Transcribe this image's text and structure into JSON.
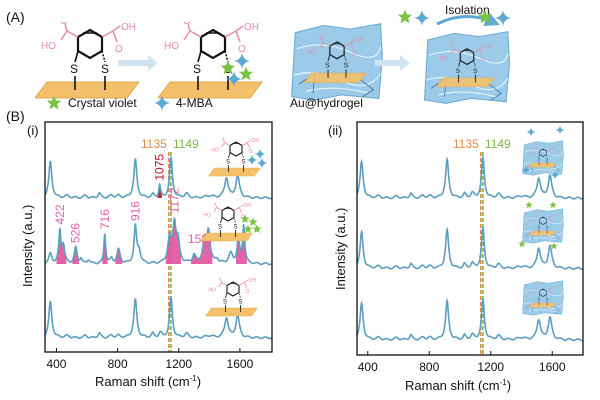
{
  "panel_a": {
    "label": "(A)",
    "legend": {
      "crystal_violet": "Crystal violet",
      "mba": "4-MBA"
    },
    "hydrogel_label": "Au@hydrogel",
    "isolation_label": "Isolation"
  },
  "molecule": {
    "acid": "OH",
    "hydroxyl": "HO",
    "oxygen": "O",
    "sulfur": "S"
  },
  "panel_b": {
    "label": "(B)"
  },
  "colors": {
    "spectrum": "#5b9fc0",
    "cv_fill": "#e0529c",
    "cv_label": "#e35fa5",
    "mba_peak": "#c0142a",
    "line_1135": "#e8874a",
    "line_1149": "#7ab648",
    "gold": "#f4c06a",
    "hydrogel": "#9ccbea",
    "star_green": "#7cc242",
    "star_blue": "#5ea8d3",
    "arrow": "#bcdbe9"
  },
  "chart_data": [
    {
      "type": "line",
      "panel": "(i)",
      "xlabel": "Raman shift (cm-1)",
      "xlabel_main": "Raman shift (cm",
      "xlabel_sup": "-1",
      "xlabel_close": ")",
      "ylabel": "Intensity (a.u.)",
      "xlim": [
        325,
        1810
      ],
      "ylim": [
        0,
        5.75
      ],
      "xticks": [
        400,
        800,
        1200,
        1600
      ],
      "xtick_labels": [
        "400",
        "800",
        "1200",
        "1600"
      ],
      "grid": false,
      "reference_lines": [
        {
          "x": 1135,
          "label": "1135",
          "color": "#e8874a"
        },
        {
          "x": 1149,
          "label": "1149",
          "color": "#7ab648"
        }
      ],
      "series": [
        {
          "inset": "substrate with 4-MBA",
          "offset": 3.85,
          "peaks": [
            [
              360,
              0.9,
              12
            ],
            [
              470,
              0.05,
              20
            ],
            [
              590,
              0.06,
              12
            ],
            [
              680,
              0.12,
              10
            ],
            [
              760,
              0.06,
              15
            ],
            [
              805,
              0.05,
              15
            ],
            [
              916,
              0.95,
              12
            ],
            [
              1030,
              0.08,
              10
            ],
            [
              1075,
              0.3,
              7
            ],
            [
              1149,
              1.0,
              11
            ],
            [
              1250,
              0.1,
              15
            ],
            [
              1400,
              0.05,
              30
            ],
            [
              1512,
              0.5,
              14
            ],
            [
              1585,
              0.55,
              14
            ]
          ],
          "filled": [
            [
              1060,
              1090,
              "#c0142a"
            ]
          ]
        },
        {
          "inset": "substrate with crystal violet",
          "offset": 2.2,
          "peaks": [
            [
              360,
              0.25,
              12
            ],
            [
              422,
              0.8,
              8
            ],
            [
              445,
              0.45,
              10
            ],
            [
              526,
              0.4,
              10
            ],
            [
              560,
              0.12,
              8
            ],
            [
              610,
              0.1,
              10
            ],
            [
              716,
              0.75,
              7
            ],
            [
              760,
              0.12,
              10
            ],
            [
              806,
              0.35,
              12
            ],
            [
              916,
              0.9,
              10
            ],
            [
              940,
              0.3,
              12
            ],
            [
              1140,
              0.6,
              14
            ],
            [
              1172,
              0.95,
              12
            ],
            [
              1195,
              0.5,
              12
            ],
            [
              1300,
              0.2,
              12
            ],
            [
              1370,
              0.55,
              15
            ],
            [
              1395,
              0.75,
              12
            ],
            [
              1450,
              0.1,
              12
            ],
            [
              1540,
              0.25,
              15
            ],
            [
              1590,
              0.6,
              10
            ],
            [
              1625,
              0.95,
              8
            ]
          ],
          "filled": [
            [
              400,
              465,
              "#e0529c"
            ],
            [
              505,
              548,
              "#e0529c"
            ],
            [
              700,
              735,
              "#e0529c"
            ],
            [
              785,
              830,
              "#e0529c"
            ],
            [
              1115,
              1215,
              "#e0529c"
            ],
            [
              1280,
              1420,
              "#e0529c"
            ],
            [
              1575,
              1645,
              "#e0529c"
            ]
          ]
        },
        {
          "inset": "bare substrate",
          "offset": 0.35,
          "peaks": [
            [
              360,
              0.9,
              12
            ],
            [
              470,
              0.05,
              20
            ],
            [
              590,
              0.06,
              12
            ],
            [
              680,
              0.12,
              10
            ],
            [
              760,
              0.06,
              15
            ],
            [
              805,
              0.05,
              15
            ],
            [
              916,
              0.95,
              12
            ],
            [
              1030,
              0.1,
              10
            ],
            [
              1080,
              0.12,
              12
            ],
            [
              1149,
              1.0,
              11
            ],
            [
              1250,
              0.1,
              15
            ],
            [
              1400,
              0.05,
              30
            ],
            [
              1512,
              0.5,
              14
            ],
            [
              1585,
              0.55,
              14
            ]
          ],
          "filled": []
        }
      ],
      "annotations": [
        {
          "text": "1075",
          "x": 1075,
          "series": 0,
          "color": "#c0142a"
        },
        {
          "text": "422",
          "x": 422,
          "series": 1,
          "color": "#e35fa5"
        },
        {
          "text": "526",
          "x": 526,
          "series": 1,
          "color": "#e35fa5"
        },
        {
          "text": "716",
          "x": 716,
          "series": 1,
          "color": "#e35fa5"
        },
        {
          "text": "916",
          "x": 916,
          "series": 1,
          "color": "#e35fa5"
        },
        {
          "text": "1172",
          "x": 1172,
          "series": 1,
          "color": "#e35fa5"
        },
        {
          "text": "1587",
          "x": 1587,
          "series": 1,
          "color": "#e35fa5"
        }
      ]
    },
    {
      "type": "line",
      "panel": "(ii)",
      "xlabel": "Raman shift (cm-1)",
      "xlabel_main": "Raman shift (cm",
      "xlabel_sup": "-1",
      "xlabel_close": ")",
      "ylabel": "Intensity (a.u.)",
      "xlim": [
        330,
        1800
      ],
      "ylim": [
        0,
        5.8
      ],
      "xticks": [
        400,
        800,
        1200,
        1600
      ],
      "xtick_labels": [
        "400",
        "800",
        "1200",
        "1600"
      ],
      "grid": false,
      "reference_lines": [
        {
          "x": 1135,
          "label": "1135",
          "color": "#e8874a"
        },
        {
          "x": 1149,
          "label": "1149",
          "color": "#7ab648"
        }
      ],
      "series": [
        {
          "inset": "Au@hydrogel with 4-MBA outside",
          "offset": 3.9,
          "peaks": [
            [
              360,
              0.9,
              12
            ],
            [
              470,
              0.05,
              20
            ],
            [
              590,
              0.05,
              15
            ],
            [
              680,
              0.12,
              10
            ],
            [
              760,
              0.06,
              15
            ],
            [
              805,
              0.05,
              15
            ],
            [
              916,
              0.95,
              12
            ],
            [
              1030,
              0.1,
              10
            ],
            [
              1080,
              0.12,
              12
            ],
            [
              1149,
              1.0,
              11
            ],
            [
              1250,
              0.1,
              15
            ],
            [
              1400,
              0.05,
              30
            ],
            [
              1512,
              0.5,
              14
            ],
            [
              1585,
              0.55,
              14
            ]
          ],
          "filled": []
        },
        {
          "inset": "Au@hydrogel with crystal violet outside",
          "offset": 2.15,
          "peaks": [
            [
              360,
              0.9,
              12
            ],
            [
              470,
              0.05,
              20
            ],
            [
              590,
              0.05,
              15
            ],
            [
              680,
              0.12,
              10
            ],
            [
              760,
              0.06,
              15
            ],
            [
              805,
              0.05,
              15
            ],
            [
              916,
              0.95,
              12
            ],
            [
              1030,
              0.1,
              10
            ],
            [
              1080,
              0.12,
              12
            ],
            [
              1149,
              1.0,
              11
            ],
            [
              1250,
              0.1,
              15
            ],
            [
              1400,
              0.05,
              30
            ],
            [
              1512,
              0.5,
              14
            ],
            [
              1585,
              0.55,
              14
            ]
          ],
          "filled": []
        },
        {
          "inset": "Au@hydrogel",
          "offset": 0.375,
          "peaks": [
            [
              360,
              0.9,
              12
            ],
            [
              470,
              0.05,
              20
            ],
            [
              590,
              0.05,
              15
            ],
            [
              680,
              0.12,
              10
            ],
            [
              760,
              0.06,
              15
            ],
            [
              805,
              0.05,
              15
            ],
            [
              916,
              0.95,
              12
            ],
            [
              1030,
              0.1,
              10
            ],
            [
              1080,
              0.12,
              12
            ],
            [
              1149,
              1.0,
              11
            ],
            [
              1250,
              0.1,
              15
            ],
            [
              1400,
              0.05,
              30
            ],
            [
              1512,
              0.5,
              14
            ],
            [
              1585,
              0.55,
              14
            ]
          ],
          "filled": []
        }
      ],
      "annotations": []
    }
  ]
}
